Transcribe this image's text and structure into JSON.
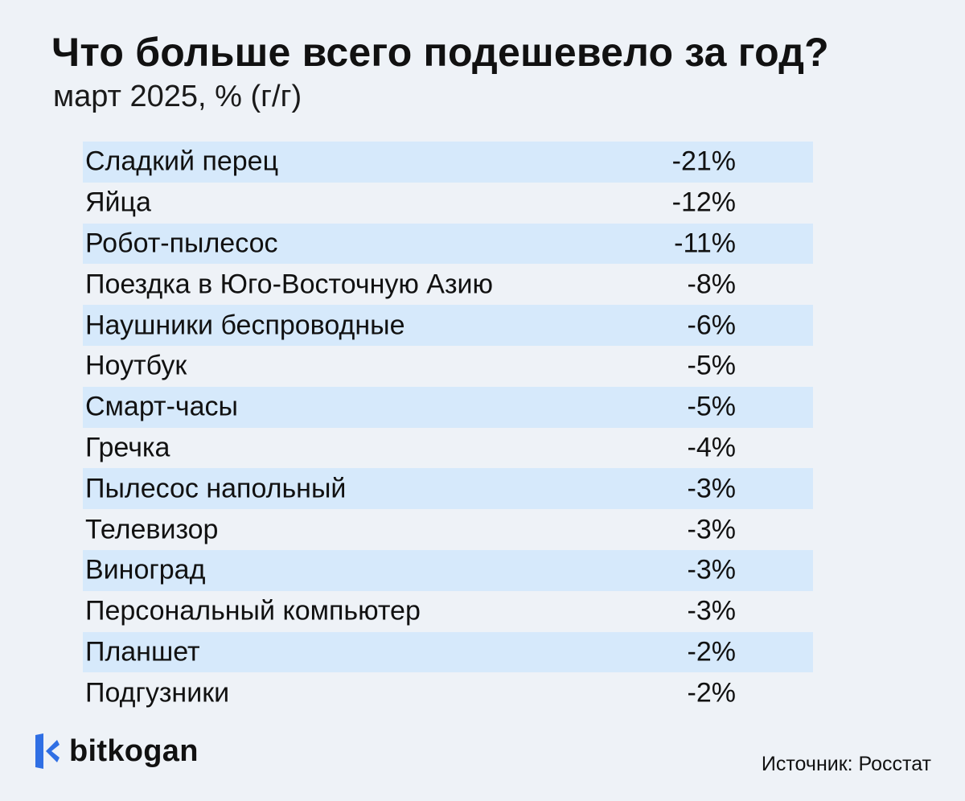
{
  "chart_data": {
    "type": "table",
    "title": "Что больше всего подешевело за год?",
    "subtitle": "март 2025, % (г/г)",
    "rows": [
      {
        "label": "Сладкий перец",
        "value": -21,
        "display": "-21%"
      },
      {
        "label": "Яйца",
        "value": -12,
        "display": "-12%"
      },
      {
        "label": "Робот-пылесос",
        "value": -11,
        "display": "-11%"
      },
      {
        "label": "Поездка в Юго-Восточную Азию",
        "value": -8,
        "display": "-8%"
      },
      {
        "label": "Наушники беспроводные",
        "value": -6,
        "display": "-6%"
      },
      {
        "label": "Ноутбук",
        "value": -5,
        "display": "-5%"
      },
      {
        "label": "Смарт-часы",
        "value": -5,
        "display": "-5%"
      },
      {
        "label": "Гречка",
        "value": -4,
        "display": "-4%"
      },
      {
        "label": "Пылесос напольный",
        "value": -3,
        "display": "-3%"
      },
      {
        "label": "Телевизор",
        "value": -3,
        "display": "-3%"
      },
      {
        "label": "Виноград",
        "value": -3,
        "display": "-3%"
      },
      {
        "label": "Персональный компьютер",
        "value": -3,
        "display": "-3%"
      },
      {
        "label": "Планшет",
        "value": -2,
        "display": "-2%"
      },
      {
        "label": "Подгузники",
        "value": -2,
        "display": "-2%"
      }
    ]
  },
  "footer": {
    "brand": "bitkogan",
    "logo_icon": "bitkogan-logo-icon",
    "source": "Источник: Росстат"
  },
  "colors": {
    "background": "#eef2f7",
    "stripe": "#d6e9fb",
    "logo_blue": "#2f6fe4"
  }
}
